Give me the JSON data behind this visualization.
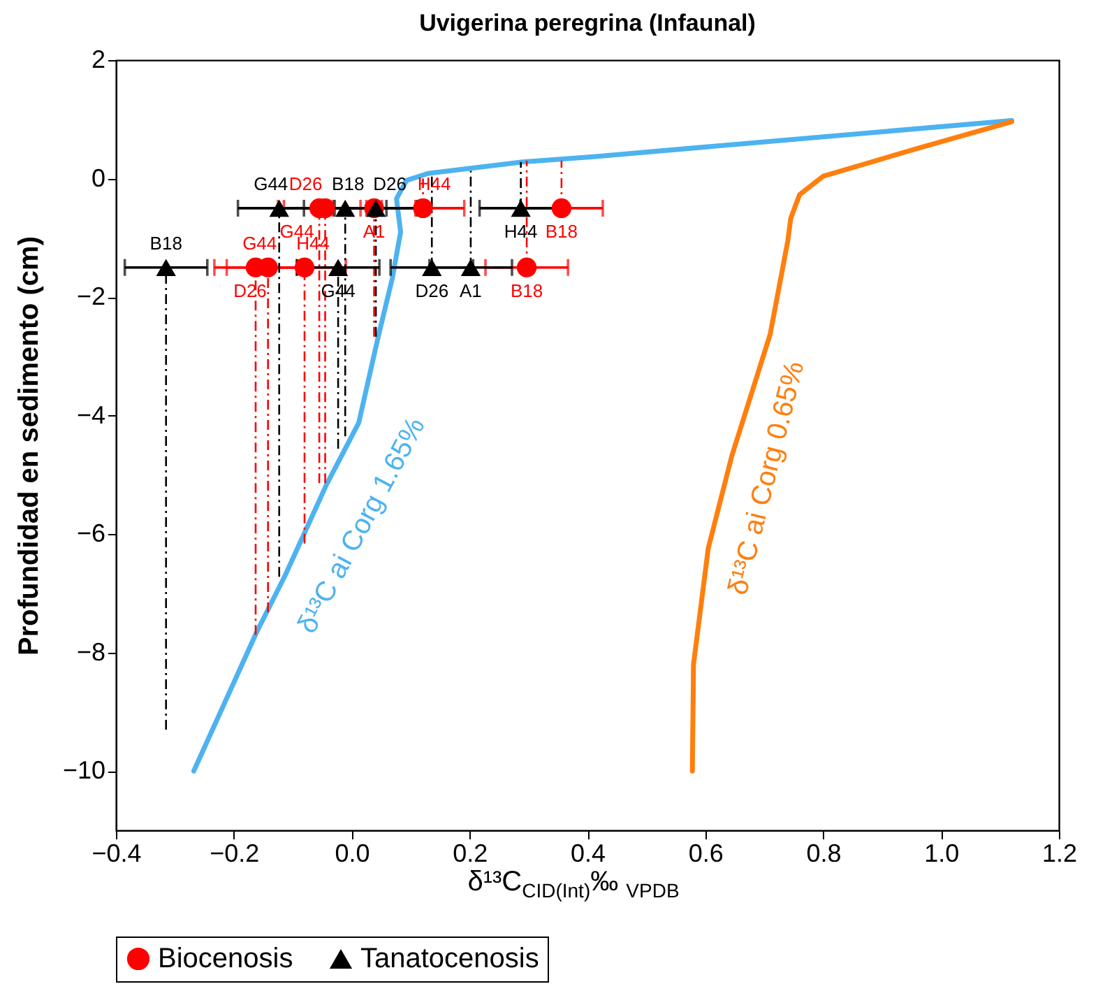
{
  "chart_data": {
    "type": "scatter",
    "title": "Uvigerina peregrina (Infaunal)",
    "xlabel": "δ¹³C$_{CID(Int)}$‰ $_{VPDB}$",
    "ylabel": "Profundidad en sedimento (cm)",
    "xlim": [
      -0.4,
      1.2
    ],
    "xticks": [
      -0.4,
      -0.2,
      {
        "value": 0,
        "label": "0.0"
      },
      0.2,
      0.4,
      0.6,
      0.8,
      {
        "value": 1,
        "label": "1.0"
      },
      1.2
    ],
    "ylim": [
      -11,
      2
    ],
    "yticks": [
      -10,
      -8,
      -6,
      -4,
      -2,
      0,
      2
    ],
    "grid": false,
    "legend": "bottom",
    "series": [
      {
        "name": "δ¹³C ai Corg 1.65%",
        "type": "line",
        "color": "#4db3f0",
        "x": [
          -0.268,
          -0.161,
          -0.113,
          -0.042,
          -0.011,
          0.012,
          0.045,
          0.069,
          0.083,
          0.076,
          0.093,
          0.131,
          0.29,
          0.41,
          1.12
        ],
        "values": [
          -10.0,
          -7.65,
          -6.7,
          -5.15,
          -4.56,
          -4.12,
          -2.67,
          -1.68,
          -0.9,
          -0.34,
          -0.03,
          0.09,
          0.28,
          0.37,
          0.98
        ]
      },
      {
        "name": "δ¹³C ai Corg 0.65%",
        "type": "line",
        "color": "#ff7f0e",
        "x": [
          0.578,
          0.58,
          0.605,
          0.645,
          0.71,
          0.74,
          0.745,
          0.76,
          0.8,
          0.96,
          1.12
        ],
        "values": [
          -10.0,
          -8.2,
          -6.24,
          -4.68,
          -2.63,
          -1.05,
          -0.67,
          -0.27,
          0.04,
          0.51,
          0.96
        ]
      },
      {
        "name": "Biocenosis",
        "marker": "circle",
        "color": "#ff0000",
        "x": [
          -0.045,
          -0.055,
          0.038,
          0.121,
          0.356,
          -0.163,
          -0.142,
          -0.08,
          0.297
        ],
        "values": [
          -0.5,
          -0.5,
          -0.5,
          -0.5,
          -0.5,
          -1.5,
          -1.5,
          -1.5,
          -1.5
        ],
        "xerrors": [
          0.07,
          0.07,
          0.07,
          0.07,
          0.07,
          0.07,
          0.07,
          0.07,
          0.07
        ],
        "errors": [
          [
            -5.14,
            -0.5
          ],
          [
            -5.14,
            -0.5
          ],
          [
            -2.67,
            -0.5
          ],
          [
            -0.5,
            0.0
          ],
          [
            -0.5,
            0.3
          ],
          [
            -7.7,
            -1.5
          ],
          [
            -7.32,
            -1.5
          ],
          [
            -6.16,
            -1.5
          ],
          [
            -1.5,
            0.3
          ]
        ],
        "value_labels": [
          "D26",
          "G44",
          "A1",
          "H44",
          "B18",
          "D26",
          "G44",
          "H44",
          "B18"
        ]
      },
      {
        "name": "Tanatocenosis",
        "marker": "triangle",
        "color": "#000000",
        "x": [
          -0.123,
          -0.011,
          0.041,
          0.287,
          -0.315,
          -0.023,
          0.136,
          0.202
        ],
        "values": [
          -0.5,
          -0.5,
          -0.5,
          -0.5,
          -1.5,
          -1.5,
          -1.5,
          -1.5
        ],
        "xerrors": [
          0.07,
          0.07,
          0.07,
          0.07,
          0.07,
          0.07,
          0.07,
          0.07
        ],
        "errors": [
          [
            -6.72,
            -0.5
          ],
          [
            -4.35,
            -0.5
          ],
          [
            -2.67,
            -0.5
          ],
          [
            -0.5,
            0.28
          ],
          [
            -9.3,
            -1.5
          ],
          [
            -4.56,
            -1.5
          ],
          [
            -1.5,
            0.05
          ],
          [
            -1.5,
            0.13
          ]
        ],
        "value_labels": [
          "G44",
          "B18",
          "D26",
          "H44",
          "B18",
          "G44",
          "D26",
          "A1"
        ]
      }
    ]
  }
}
